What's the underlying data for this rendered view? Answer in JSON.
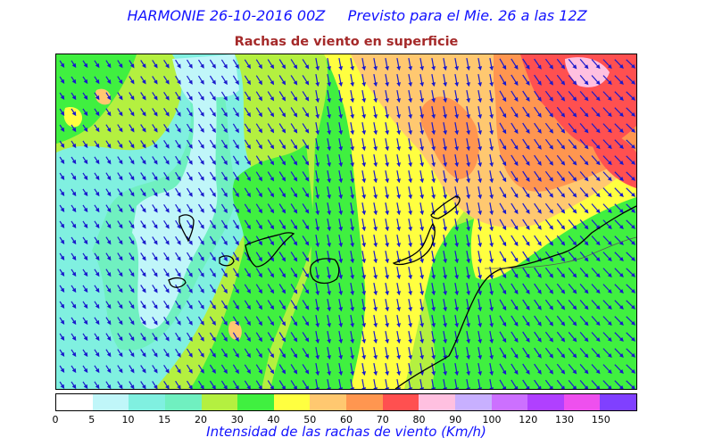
{
  "header": {
    "title": "HARMONIE 26-10-2016 00Z     Previsto para el Mie. 26 a las 12Z",
    "subtitle": "Rachas de viento en superficie"
  },
  "legend": {
    "unit_label": "Intensidad de las rachas de viento (Km/h)",
    "ticks": [
      "0",
      "5",
      "10",
      "15",
      "20",
      "30",
      "40",
      "50",
      "60",
      "70",
      "80",
      "90",
      "100",
      "120",
      "130",
      "150"
    ],
    "colors": [
      "#ffffff",
      "#c0f6f9",
      "#80f0e0",
      "#70f0c0",
      "#b4f040",
      "#40f040",
      "#ffff40",
      "#ffc870",
      "#ff9650",
      "#ff5050",
      "#ffc0e0",
      "#c8b0ff",
      "#cc70ff",
      "#b040ff",
      "#ee50ee",
      "#8040ff"
    ]
  },
  "map": {
    "region": "Islas Canarias",
    "arrow_color": "#1a1acc",
    "coast_color": "#000000"
  }
}
